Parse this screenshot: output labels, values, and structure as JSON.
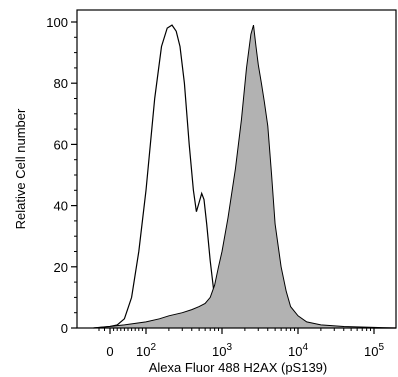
{
  "chart_data": {
    "type": "area",
    "title": "",
    "xlabel": "Alexa Fluor 488 H2AX (pS139)",
    "ylabel": "Relative Cell number",
    "x_scale": "biexponential",
    "ylim": [
      0,
      100
    ],
    "grid": false,
    "legend": "none",
    "y_ticks": [
      0,
      20,
      40,
      60,
      80,
      100
    ],
    "y_tick_labels": [
      "0",
      "20",
      "40",
      "60",
      "80",
      "100"
    ],
    "x_ticks": [
      0,
      100,
      1000,
      10000,
      100000
    ],
    "x_tick_labels": [
      {
        "base": "0",
        "exp": ""
      },
      {
        "base": "10",
        "exp": "2"
      },
      {
        "base": "10",
        "exp": "3"
      },
      {
        "base": "10",
        "exp": "4"
      },
      {
        "base": "10",
        "exp": "5"
      }
    ],
    "series": [
      {
        "style": "outline",
        "color": "#000000",
        "points": [
          [
            -30,
            0
          ],
          [
            0,
            0.5
          ],
          [
            20,
            1
          ],
          [
            40,
            3
          ],
          [
            60,
            10
          ],
          [
            80,
            25
          ],
          [
            100,
            45
          ],
          [
            130,
            75
          ],
          [
            160,
            92
          ],
          [
            190,
            98
          ],
          [
            220,
            99
          ],
          [
            250,
            97
          ],
          [
            280,
            92
          ],
          [
            320,
            80
          ],
          [
            370,
            60
          ],
          [
            420,
            45
          ],
          [
            460,
            38
          ],
          [
            500,
            41
          ],
          [
            540,
            44
          ],
          [
            580,
            42
          ],
          [
            630,
            34
          ],
          [
            700,
            22
          ],
          [
            780,
            12
          ],
          [
            850,
            7
          ],
          [
            950,
            3
          ],
          [
            1100,
            2
          ],
          [
            1500,
            1.5
          ],
          [
            2500,
            1.2
          ],
          [
            5000,
            1
          ],
          [
            10000,
            0.6
          ],
          [
            20000,
            0.3
          ],
          [
            50000,
            0.1
          ],
          [
            100000,
            0
          ],
          [
            200000,
            0
          ]
        ]
      },
      {
        "style": "filled",
        "color": "#b2b2b2",
        "points": [
          [
            -30,
            0
          ],
          [
            0,
            0.5
          ],
          [
            20,
            0.8
          ],
          [
            40,
            1
          ],
          [
            70,
            1.5
          ],
          [
            100,
            2
          ],
          [
            150,
            3
          ],
          [
            200,
            4
          ],
          [
            300,
            5
          ],
          [
            400,
            6
          ],
          [
            500,
            7
          ],
          [
            600,
            8
          ],
          [
            700,
            10
          ],
          [
            800,
            14
          ],
          [
            900,
            20
          ],
          [
            1000,
            25
          ],
          [
            1200,
            36
          ],
          [
            1500,
            52
          ],
          [
            1800,
            68
          ],
          [
            2100,
            85
          ],
          [
            2400,
            96
          ],
          [
            2600,
            99
          ],
          [
            2800,
            92
          ],
          [
            3000,
            86
          ],
          [
            3300,
            80
          ],
          [
            3600,
            74
          ],
          [
            4000,
            66
          ],
          [
            4500,
            50
          ],
          [
            5000,
            34
          ],
          [
            6000,
            20
          ],
          [
            7000,
            12
          ],
          [
            8000,
            7
          ],
          [
            10000,
            4
          ],
          [
            13000,
            2
          ],
          [
            20000,
            1
          ],
          [
            40000,
            0.5
          ],
          [
            100000,
            0.2
          ],
          [
            200000,
            0
          ]
        ]
      }
    ]
  }
}
